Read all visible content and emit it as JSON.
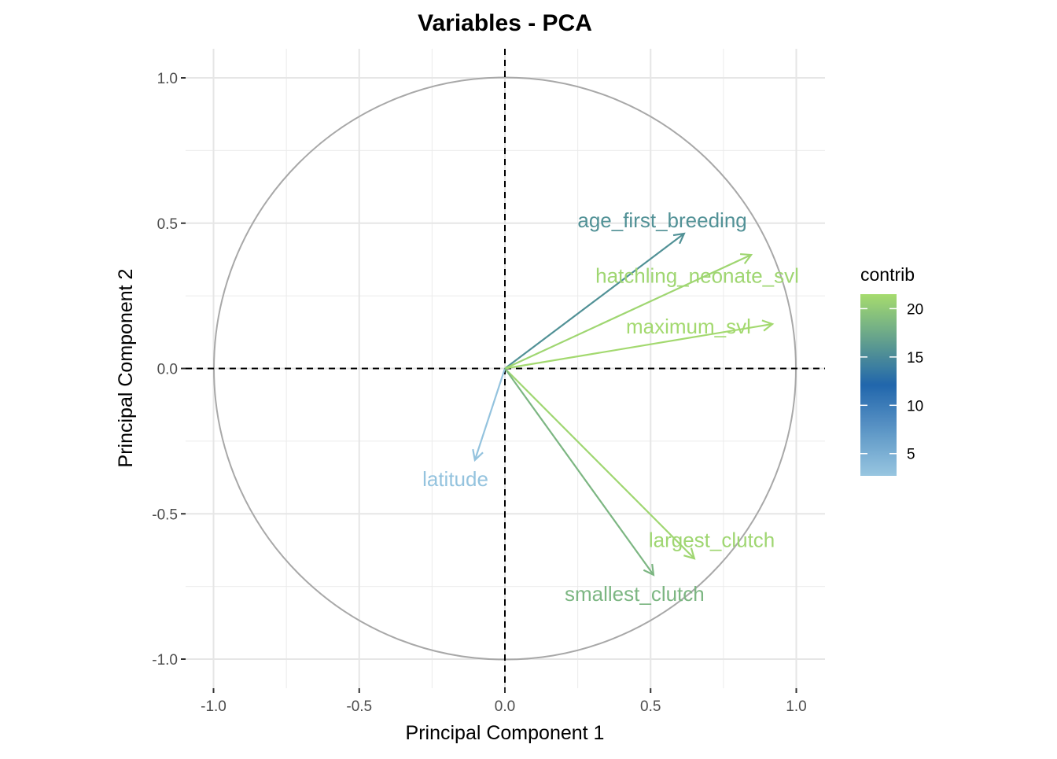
{
  "chart_data": {
    "type": "pca-variable-correlation-circle",
    "title": "Variables - PCA",
    "xlabel": "Principal Component 1",
    "ylabel": "Principal Component 2",
    "xlim": [
      -1.1,
      1.1
    ],
    "ylim": [
      -1.1,
      1.1
    ],
    "xticks": [
      -1.0,
      -0.5,
      0.0,
      0.5,
      1.0
    ],
    "yticks": [
      -1.0,
      -0.5,
      0.0,
      0.5,
      1.0
    ],
    "xtick_labels": [
      "-1.0",
      "-0.5",
      "0.0",
      "0.5",
      "1.0"
    ],
    "ytick_labels": [
      "-1.0",
      "-0.5",
      "0.0",
      "0.5",
      "1.0"
    ],
    "grid": true,
    "legend": {
      "title": "contrib",
      "placement": "right",
      "range": [
        2.7,
        21.5
      ],
      "ticks": [
        5,
        10,
        15,
        20
      ],
      "tick_labels": [
        "5",
        "10",
        "15",
        "20"
      ],
      "colors": {
        "low": "#98c6e0",
        "mid": "#2166ac",
        "high": "#a6dc6e"
      },
      "mid_value": 12.1
    },
    "variables": [
      {
        "name": "age_first_breeding",
        "x": 0.615,
        "y": 0.464,
        "contrib": 15.5,
        "label_x": 0.54,
        "label_y": 0.51
      },
      {
        "name": "hatchling_neonate_svl",
        "x": 0.845,
        "y": 0.391,
        "contrib": 21.0,
        "label_x": 0.66,
        "label_y": 0.32
      },
      {
        "name": "maximum_svl",
        "x": 0.918,
        "y": 0.153,
        "contrib": 21.3,
        "label_x": 0.63,
        "label_y": 0.145
      },
      {
        "name": "latitude",
        "x": -0.103,
        "y": -0.315,
        "contrib": 3.0,
        "label_x": -0.17,
        "label_y": -0.38
      },
      {
        "name": "largest_clutch",
        "x": 0.65,
        "y": -0.654,
        "contrib": 21.0,
        "label_x": 0.71,
        "label_y": -0.59
      },
      {
        "name": "smallest_clutch",
        "x": 0.51,
        "y": -0.71,
        "contrib": 18.5,
        "label_x": 0.445,
        "label_y": -0.775
      }
    ]
  }
}
